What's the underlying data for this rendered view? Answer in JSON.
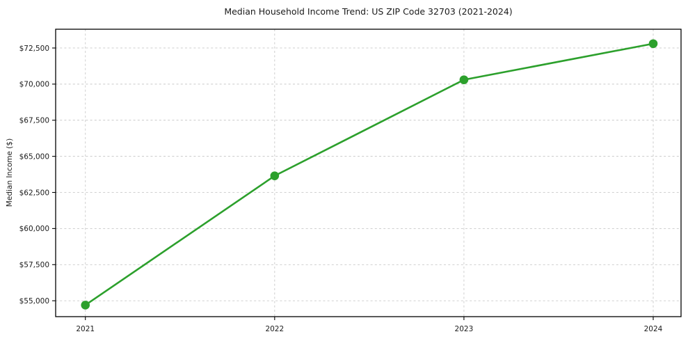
{
  "chart_data": {
    "type": "line",
    "title": "Median Household Income Trend: US ZIP Code 32703 (2021-2024)",
    "xlabel": "",
    "ylabel": "Median Income ($)",
    "x": [
      2021,
      2022,
      2023,
      2024
    ],
    "x_tick_labels": [
      "2021",
      "2022",
      "2023",
      "2024"
    ],
    "series": [
      {
        "name": "Median Household Income",
        "values": [
          54700,
          63650,
          70300,
          72800
        ]
      }
    ],
    "y_ticks": [
      55000,
      57500,
      60000,
      62500,
      65000,
      67500,
      70000,
      72500
    ],
    "y_tick_labels": [
      "$55,000",
      "$57,500",
      "$60,000",
      "$62,500",
      "$65,000",
      "$67,500",
      "$70,000",
      "$72,500"
    ],
    "xlim": [
      2020.843,
      2024.147
    ],
    "ylim": [
      53900,
      73800
    ],
    "grid": true,
    "grid_style": "dashed",
    "legend_position": "none",
    "marker": "circle"
  },
  "colors": {
    "line": "#2ca02c",
    "marker": "#2ca02c",
    "grid": "#c9c9c9",
    "axis": "#000000",
    "text": "#1a1a1a",
    "background": "#ffffff"
  }
}
